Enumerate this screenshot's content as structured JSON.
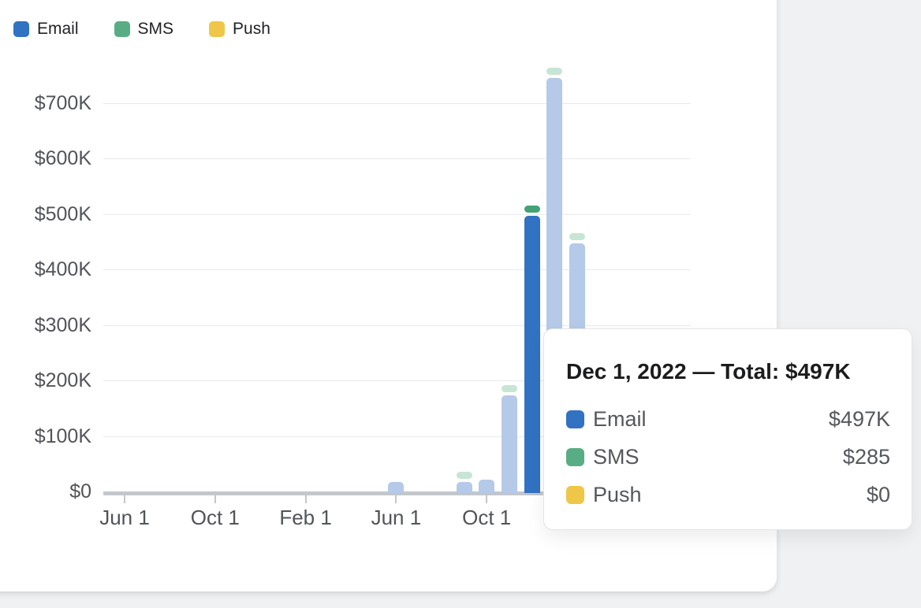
{
  "legend": {
    "items": [
      {
        "label": "Email",
        "color": "#3172c2"
      },
      {
        "label": "SMS",
        "color": "#58ad85"
      },
      {
        "label": "Push",
        "color": "#eec748"
      }
    ]
  },
  "colors": {
    "email_strong": "#3172c2",
    "email_light": "#b5c9e8",
    "sms_strong": "#43a376",
    "sms_light": "#c7e5d4",
    "push": "#eec748",
    "gridline": "#e9eaec",
    "axis": "#c3c6ca",
    "card_bg": "#ffffff",
    "page_bg": "#f0f1f3"
  },
  "chart_data": {
    "type": "bar",
    "stacked": true,
    "series_names": [
      "Email",
      "SMS",
      "Push"
    ],
    "y_axis": {
      "tick_labels": [
        "$700K",
        "$600K",
        "$500K",
        "$400K",
        "$300K",
        "$200K",
        "$100K",
        "$0"
      ],
      "tick_values_k": [
        700,
        600,
        500,
        400,
        300,
        200,
        100,
        0
      ],
      "ylim_k": [
        0,
        760
      ]
    },
    "x_axis": {
      "tick_labels": [
        "Jun 1",
        "Oct 1",
        "Feb 1",
        "Jun 1",
        "Oct 1"
      ],
      "tick_month_index": [
        0,
        4,
        8,
        12,
        16
      ],
      "start_month": "Jun 1, 2021"
    },
    "bars": [
      {
        "date": "Jun 1, 2022",
        "month_index": 12,
        "email_k": 17,
        "sms_cap": false,
        "highlighted": false
      },
      {
        "date": "Sep 1, 2022",
        "month_index": 15,
        "email_k": 17,
        "sms_cap": true,
        "highlighted": false
      },
      {
        "date": "Oct 1, 2022",
        "month_index": 16,
        "email_k": 21,
        "sms_cap": false,
        "highlighted": false
      },
      {
        "date": "Nov 1, 2022",
        "month_index": 17,
        "email_k": 173,
        "sms_cap": true,
        "highlighted": false
      },
      {
        "date": "Dec 1, 2022",
        "month_index": 18,
        "email_k": 497,
        "sms_cap": true,
        "highlighted": true
      },
      {
        "date": "Jan 1, 2023",
        "month_index": 19,
        "email_k": 745,
        "sms_cap": true,
        "highlighted": false
      },
      {
        "date": "Feb 1, 2023",
        "month_index": 20,
        "email_k": 447,
        "sms_cap": true,
        "highlighted": false
      }
    ],
    "legend_position": "top-left",
    "grid": true
  },
  "tooltip": {
    "title": "Dec 1, 2022 — Total: $497K",
    "rows": [
      {
        "label": "Email",
        "value": "$497K",
        "color": "#3172c2"
      },
      {
        "label": "SMS",
        "value": "$285",
        "color": "#58ad85"
      },
      {
        "label": "Push",
        "value": "$0",
        "color": "#eec748"
      }
    ]
  }
}
